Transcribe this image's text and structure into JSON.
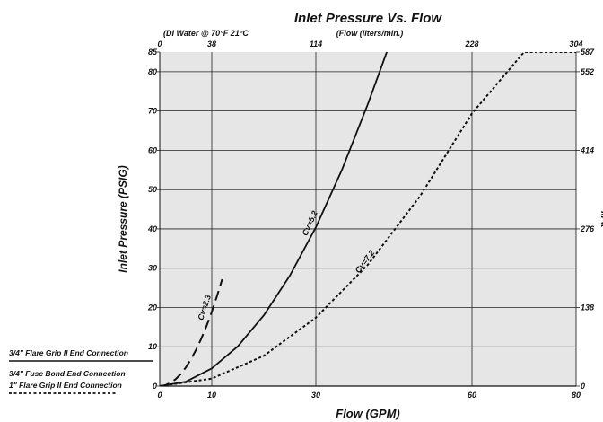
{
  "chart_data": {
    "type": "line",
    "title": "Inlet Pressure Vs. Flow",
    "note": "(DI Water @ 70°F 21°C",
    "xlabel": "Flow (GPM)",
    "ylabel": "Inlet Pressure (PSIG)",
    "top_axis_label": "(Flow (liters/min.)",
    "right_axis_label": "kPa",
    "xlim": [
      0,
      80
    ],
    "ylim": [
      0,
      85
    ],
    "x_ticks": [
      "0",
      "10",
      "30",
      "60",
      "80"
    ],
    "x_tick_values": [
      0,
      10,
      30,
      60,
      80
    ],
    "y_ticks": [
      "0",
      "10",
      "20",
      "30",
      "40",
      "50",
      "60",
      "70",
      "80",
      "85"
    ],
    "y_tick_values": [
      0,
      10,
      20,
      30,
      40,
      50,
      60,
      70,
      80,
      85
    ],
    "top_ticks": [
      "0",
      "38",
      "114",
      "228",
      "304"
    ],
    "top_tick_values": [
      0,
      10,
      30,
      60,
      80
    ],
    "right_ticks": [
      "0",
      "138",
      "276",
      "414",
      "552",
      "587"
    ],
    "right_tick_values": [
      0,
      20,
      40,
      60,
      80,
      85
    ],
    "grid": true,
    "series": [
      {
        "name": "Cv=2.3",
        "style": "long-dash",
        "color": "#111111",
        "x": [
          0,
          1,
          2,
          3,
          4,
          5,
          6,
          7,
          8,
          9,
          10,
          11,
          11.5,
          12
        ],
        "y": [
          0,
          0.2,
          0.8,
          1.7,
          3.0,
          4.7,
          6.8,
          9.3,
          12.1,
          15.3,
          18.9,
          22.9,
          25.0,
          27.2
        ]
      },
      {
        "name": "Cv=5.2",
        "style": "solid",
        "color": "#111111",
        "x": [
          0,
          5,
          10,
          15,
          20,
          25,
          30,
          35,
          40,
          45,
          50,
          55,
          56
        ],
        "y": [
          0,
          1.1,
          4.5,
          10.1,
          18.0,
          28.1,
          40.4,
          55.0,
          71.8,
          90,
          90,
          90,
          90
        ]
      },
      {
        "name": "Cv=7.2",
        "style": "dotted",
        "color": "#111111",
        "x": [
          0,
          10,
          20,
          30,
          40,
          50,
          60,
          70,
          80
        ],
        "y": [
          0,
          1.9,
          7.7,
          17.4,
          30.9,
          48.3,
          69.4,
          85,
          85
        ]
      }
    ],
    "legend": [
      {
        "label": "3/4\" Flare Grip II End Connection",
        "style": "solid"
      },
      {
        "label": "3/4\" Fuse Bond End Connection",
        "style": "long-dash"
      },
      {
        "label": "1\" Flare Grip II End Connection",
        "style": "dotted"
      }
    ],
    "legend_position": "left"
  }
}
